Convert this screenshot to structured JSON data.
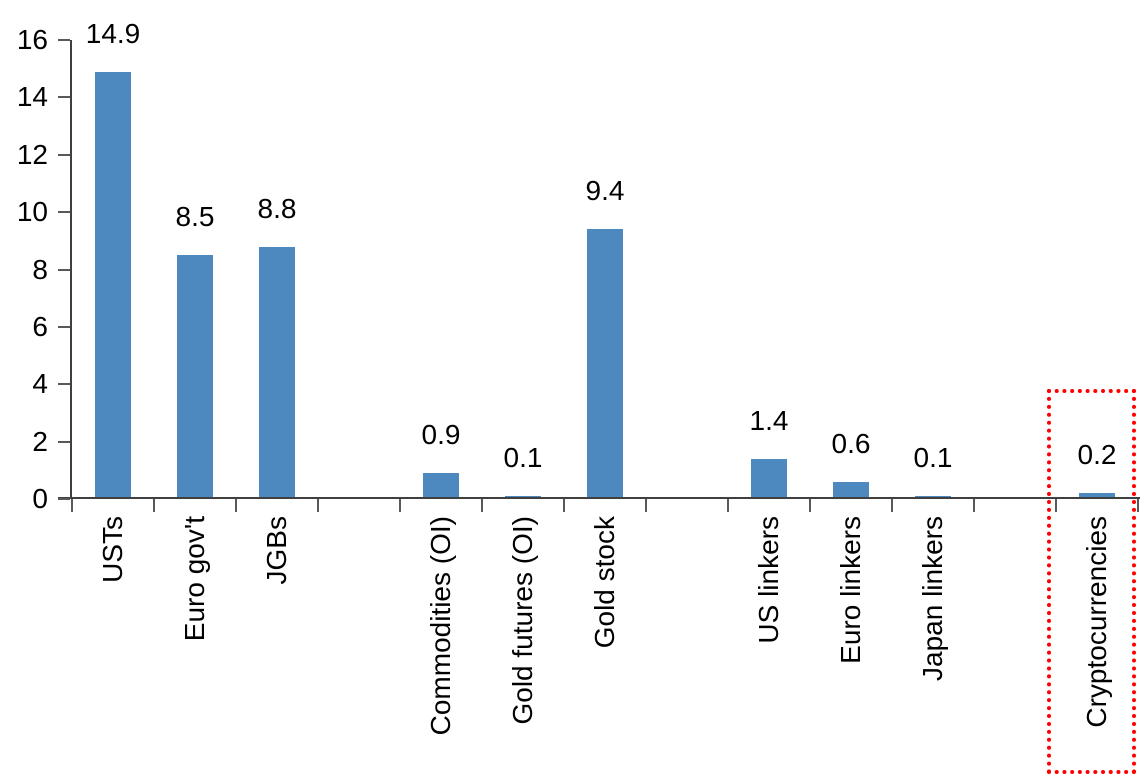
{
  "chart_data": {
    "type": "bar",
    "title": "",
    "xlabel": "",
    "ylabel": "",
    "categories": [
      "USTs",
      "Euro gov't",
      "JGBs",
      "Commodities (OI)",
      "Gold futures (OI)",
      "Gold stock",
      "US linkers",
      "Euro linkers",
      "Japan linkers",
      "Cryptocurrencies"
    ],
    "values": [
      14.9,
      8.5,
      8.8,
      0.9,
      0.1,
      9.4,
      1.4,
      0.6,
      0.1,
      0.2
    ],
    "data_labels": [
      "14.9",
      "8.5",
      "8.8",
      "0.9",
      "0.1",
      "9.4",
      "1.4",
      "0.6",
      "0.1",
      "0.2"
    ],
    "slots": [
      0,
      1,
      2,
      4,
      5,
      6,
      8,
      9,
      10,
      12
    ],
    "total_slots": 13,
    "y_axis": {
      "min": 0,
      "max": 16,
      "step": 2,
      "tick_labels": [
        "0",
        "2",
        "4",
        "6",
        "8",
        "10",
        "12",
        "14",
        "16"
      ]
    },
    "grid": false,
    "legend": false,
    "bar_color": "#4D88BE",
    "axis_color": "#404040",
    "tick_color": "#595959",
    "text_color": "#000000",
    "highlight_box": {
      "category": "Cryptocurrencies",
      "color": "#FF0000",
      "style": "dotted"
    }
  }
}
